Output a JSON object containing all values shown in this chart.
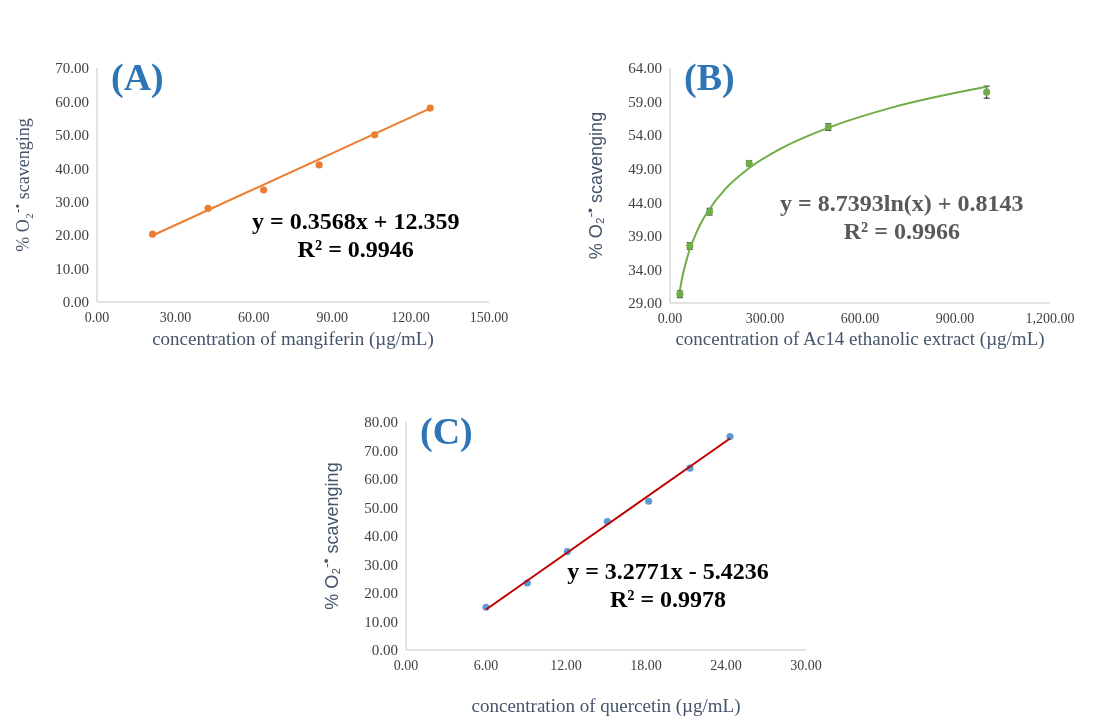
{
  "chart_data": [
    {
      "type": "scatter",
      "title": "(A)",
      "xlabel": "concentration of mangiferin (µg/mL)",
      "ylabel": "% O₂$^{-•}$ scavenging",
      "annotations": [
        "y = 0.3568x + 12.359",
        "R² = 0.9946"
      ],
      "xlim": [
        0,
        150
      ],
      "xticks": [
        {
          "value": 0,
          "label": "0.00"
        },
        {
          "value": 30,
          "label": "30.00"
        },
        {
          "value": 60,
          "label": "60.00"
        },
        {
          "value": 90,
          "label": "90.00"
        },
        {
          "value": 120,
          "label": "120.00"
        },
        {
          "value": 150,
          "label": "150.00"
        }
      ],
      "ylim": [
        0,
        70
      ],
      "yticks": [
        {
          "value": 0,
          "label": "0.00"
        },
        {
          "value": 10,
          "label": "10.00"
        },
        {
          "value": 20,
          "label": "20.00"
        },
        {
          "value": 30,
          "label": "30.00"
        },
        {
          "value": 40,
          "label": "40.00"
        },
        {
          "value": 50,
          "label": "50.00"
        },
        {
          "value": 60,
          "label": "60.00"
        },
        {
          "value": 70,
          "label": "70.00"
        }
      ],
      "grid": false,
      "marker": "circle",
      "series": [
        {
          "type": "scatter",
          "color": "#ed7d31",
          "x": [
            21.25,
            42.5,
            63.75,
            85,
            106.25,
            127.5
          ],
          "values": [
            20.3,
            28,
            33.5,
            41,
            50,
            58
          ]
        },
        {
          "type": "line",
          "color": "#ed7d31",
          "marker": "none",
          "x": [
            21.25,
            127.5
          ],
          "values": [
            19.9,
            57.9
          ]
        }
      ]
    },
    {
      "type": "scatter",
      "title": "(B)",
      "xlabel": "concentration of Ac14 ethanolic extract (µg/mL)",
      "ylabel": "% O₂$^{-•}$ scavenging",
      "annotations": [
        "y = 8.7393ln(x) + 0.8143",
        "R² = 0.9966"
      ],
      "xlim": [
        0,
        1200
      ],
      "xticks": [
        {
          "value": 0,
          "label": "0.00"
        },
        {
          "value": 300,
          "label": "300.00"
        },
        {
          "value": 600,
          "label": "600.00"
        },
        {
          "value": 900,
          "label": "900.00"
        },
        {
          "value": 1200,
          "label": "1,200.00"
        }
      ],
      "ylim": [
        29,
        64
      ],
      "yticks": [
        {
          "value": 29,
          "label": "29.00"
        },
        {
          "value": 34,
          "label": "34.00"
        },
        {
          "value": 39,
          "label": "39.00"
        },
        {
          "value": 44,
          "label": "44.00"
        },
        {
          "value": 49,
          "label": "49.00"
        },
        {
          "value": 54,
          "label": "54.00"
        },
        {
          "value": 59,
          "label": "59.00"
        },
        {
          "value": 64,
          "label": "64.00"
        }
      ],
      "grid": false,
      "marker": "circle",
      "series": [
        {
          "type": "scatter",
          "color": "#70ad47",
          "x": [
            31.25,
            62.5,
            125,
            250,
            500,
            1000
          ],
          "values": [
            30.3,
            37.5,
            42.6,
            49.8,
            55.2,
            60.4
          ],
          "errors": [
            0.5,
            0.5,
            0.5,
            0.4,
            0.5,
            0.9
          ]
        },
        {
          "type": "line",
          "color": "#70ad47",
          "marker": "none",
          "x": [
            31.25,
            40,
            50,
            62.5,
            80,
            100,
            125,
            175,
            250,
            350,
            500,
            700,
            1000
          ],
          "values": [
            30.9,
            33.1,
            35.0,
            37.0,
            39.1,
            41.1,
            43.0,
            46.0,
            49.1,
            52.0,
            55.1,
            58.1,
            61.2
          ]
        }
      ]
    },
    {
      "type": "scatter",
      "title": "(C)",
      "xlabel": "concentration of quercetin (µg/mL)",
      "ylabel": "% O₂$^{-•}$ scavenging",
      "annotations": [
        "y = 3.2771x - 5.4236",
        "R² = 0.9978"
      ],
      "xlim": [
        0,
        30
      ],
      "xticks": [
        {
          "value": 0,
          "label": "0.00"
        },
        {
          "value": 6,
          "label": "6.00"
        },
        {
          "value": 12,
          "label": "12.00"
        },
        {
          "value": 18,
          "label": "18.00"
        },
        {
          "value": 24,
          "label": "24.00"
        },
        {
          "value": 30,
          "label": "30.00"
        }
      ],
      "ylim": [
        0,
        80
      ],
      "yticks": [
        {
          "value": 0,
          "label": "0.00"
        },
        {
          "value": 10,
          "label": "10.00"
        },
        {
          "value": 20,
          "label": "20.00"
        },
        {
          "value": 30,
          "label": "30.00"
        },
        {
          "value": 40,
          "label": "40.00"
        },
        {
          "value": 50,
          "label": "50.00"
        },
        {
          "value": 60,
          "label": "60.00"
        },
        {
          "value": 70,
          "label": "70.00"
        },
        {
          "value": 80,
          "label": "80.00"
        }
      ],
      "grid": false,
      "marker": "circle",
      "series": [
        {
          "type": "scatter",
          "color": "#5b9bd5",
          "x": [
            6,
            9.1,
            12.1,
            15.1,
            18.2,
            21.3,
            24.3
          ],
          "values": [
            15.0,
            23.5,
            34.5,
            45.1,
            52.2,
            63.8,
            74.9
          ]
        },
        {
          "type": "line",
          "color": "#c00000",
          "marker": "none",
          "x": [
            6,
            24.3
          ],
          "values": [
            14.2,
            74.2
          ]
        }
      ]
    }
  ]
}
